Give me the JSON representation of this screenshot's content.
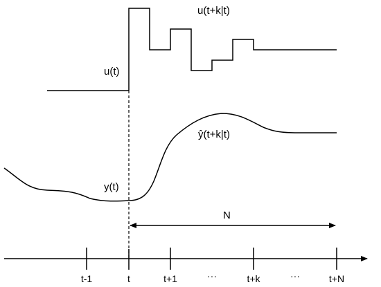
{
  "labels": {
    "u_t": "u(t)",
    "u_pred": "u(t+k|t)",
    "y_pred": "ŷ(t+k|t)",
    "y_t": "y(t)",
    "horizon": "N"
  },
  "axis": {
    "ticks": [
      "t-1",
      "t",
      "t+1",
      "···",
      "t+k",
      "···",
      "t+N"
    ]
  }
}
